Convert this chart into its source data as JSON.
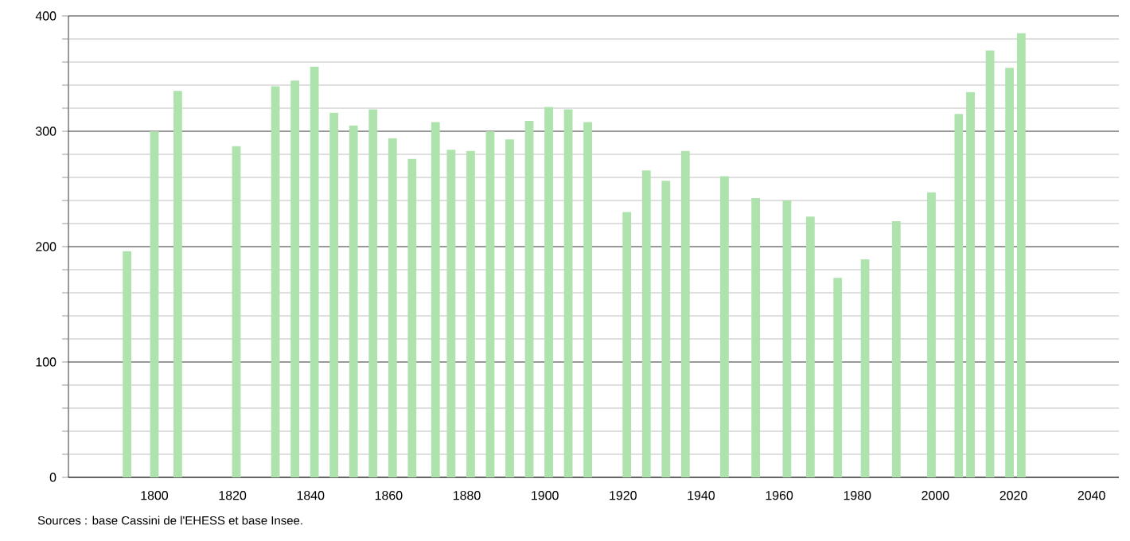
{
  "chart_data": {
    "type": "bar",
    "color": "#aee3ae",
    "x": [
      1793,
      1800,
      1806,
      1821,
      1831,
      1836,
      1841,
      1846,
      1851,
      1856,
      1861,
      1866,
      1872,
      1876,
      1881,
      1886,
      1891,
      1896,
      1901,
      1906,
      1911,
      1921,
      1926,
      1931,
      1936,
      1946,
      1954,
      1962,
      1968,
      1975,
      1982,
      1990,
      1999,
      2006,
      2009,
      2014,
      2019,
      2022
    ],
    "values": [
      196,
      300,
      335,
      287,
      339,
      344,
      356,
      316,
      305,
      319,
      294,
      276,
      308,
      284,
      283,
      300,
      293,
      309,
      321,
      319,
      308,
      230,
      266,
      257,
      283,
      261,
      242,
      240,
      226,
      173,
      189,
      222,
      247,
      315,
      334,
      370,
      355,
      385
    ],
    "xlim": [
      1778,
      2047
    ],
    "ylim": [
      0,
      400
    ],
    "xticks": [
      1800,
      1820,
      1840,
      1860,
      1880,
      1900,
      1920,
      1940,
      1960,
      1980,
      2000,
      2020,
      2040
    ],
    "yticks": [
      0,
      {
        "value": 20,
        "label": null
      },
      {
        "value": 40,
        "label": null
      },
      {
        "value": 60,
        "label": null
      },
      {
        "value": 80,
        "label": null
      },
      100,
      {
        "value": 120,
        "label": null
      },
      {
        "value": 140,
        "label": null
      },
      {
        "value": 160,
        "label": null
      },
      {
        "value": 180,
        "label": null
      },
      200,
      {
        "value": 220,
        "label": null
      },
      {
        "value": 240,
        "label": null
      },
      {
        "value": 260,
        "label": null
      },
      {
        "value": 280,
        "label": null
      },
      300,
      {
        "value": 320,
        "label": null
      },
      {
        "value": 340,
        "label": null
      },
      {
        "value": 360,
        "label": null
      },
      {
        "value": 380,
        "label": null
      },
      400
    ],
    "grid": "y",
    "annotations": [
      "Sources : base Cassini de l'EHESS et base Insee."
    ]
  }
}
